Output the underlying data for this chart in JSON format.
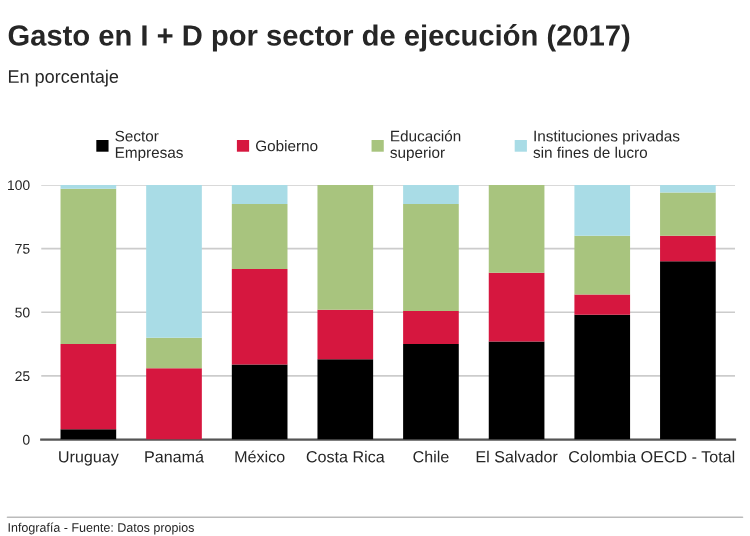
{
  "chart_data": {
    "type": "bar",
    "stacked": true,
    "title": "Gasto en I + D por sector de ejecución (2017)",
    "subtitle": "En porcentaje",
    "categories": [
      "Uruguay",
      "Panamá",
      "México",
      "Costa Rica",
      "Chile",
      "El Salvador",
      "Colombia",
      "OECD - Total"
    ],
    "series": [
      {
        "name": "Sector\nEmpresas",
        "color": "#000000",
        "values": [
          4,
          0,
          29.5,
          31.5,
          37.5,
          38.5,
          49,
          70
        ]
      },
      {
        "name": "Gobierno",
        "color": "#d6173f",
        "values": [
          33.5,
          28,
          37.5,
          19.5,
          13,
          27,
          8,
          10
        ]
      },
      {
        "name": "Educación\nsuperior",
        "color": "#a8c47e",
        "values": [
          61,
          12,
          25.5,
          49,
          42,
          34.5,
          23,
          17
        ]
      },
      {
        "name": "Instituciones privadas\nsin fines de lucro",
        "color": "#a9dce6",
        "values": [
          1.5,
          60,
          7.5,
          null,
          7.5,
          null,
          20,
          3
        ]
      }
    ],
    "ylim": [
      0,
      100
    ],
    "yticks": [
      0,
      25,
      50,
      75,
      100
    ],
    "grid": "y",
    "legend": "top",
    "annotations": [
      "Infografía - Fuente: Datos propios"
    ]
  }
}
